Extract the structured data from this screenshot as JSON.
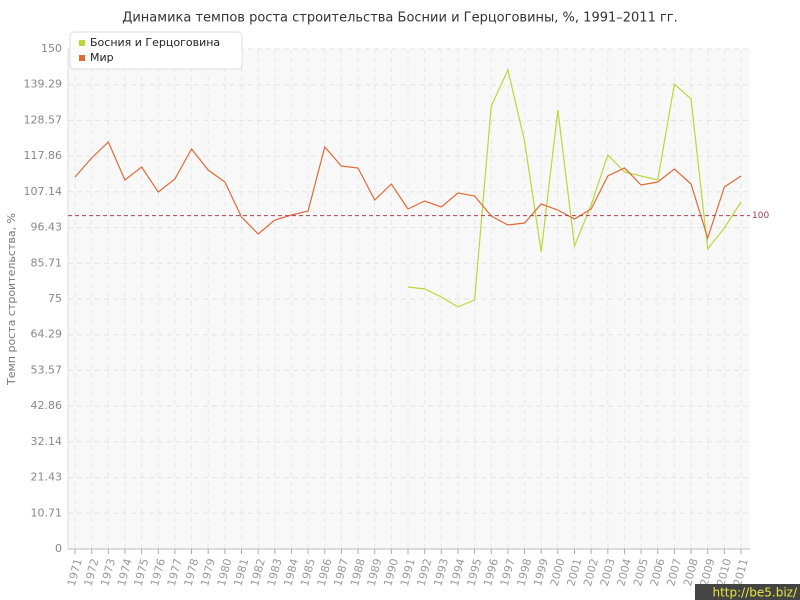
{
  "chart_data": {
    "type": "line",
    "title": "Динамика темпов роста строительства Боснии и Герцоговины, %, 1991–2011 гг.",
    "y_label": "Темп роста строительства, %",
    "categories": [
      "1971",
      "1972",
      "1973",
      "1974",
      "1975",
      "1976",
      "1977",
      "1978",
      "1979",
      "1980",
      "1981",
      "1982",
      "1983",
      "1984",
      "1985",
      "1986",
      "1987",
      "1988",
      "1989",
      "1990",
      "1991",
      "1992",
      "1993",
      "1994",
      "1995",
      "1996",
      "1997",
      "1998",
      "1999",
      "2000",
      "2001",
      "2002",
      "2003",
      "2004",
      "2005",
      "2006",
      "2007",
      "2008",
      "2009",
      "2010",
      "2011"
    ],
    "series": [
      {
        "name": "Босния и Герцоговина",
        "color": "#b9d83a",
        "values": [
          null,
          null,
          null,
          null,
          null,
          null,
          null,
          null,
          null,
          null,
          null,
          null,
          null,
          null,
          null,
          null,
          null,
          null,
          null,
          null,
          78.6,
          78,
          75.6,
          72.6,
          74.7,
          132.9,
          143.7,
          122.4,
          89.1,
          131.7,
          90.9,
          103.2,
          118.2,
          113.1,
          111.9,
          110.7,
          139.5,
          135,
          90,
          96.3,
          104.1
        ]
      },
      {
        "name": "Мир",
        "color": "#e06a3a",
        "values": [
          111.6,
          117.3,
          122.1,
          110.7,
          114.6,
          107.1,
          111,
          120,
          113.7,
          110.1,
          99.6,
          94.5,
          98.7,
          100.2,
          101.4,
          120.6,
          114.9,
          114.3,
          104.7,
          109.5,
          102,
          104.4,
          102.6,
          106.8,
          105.9,
          99.9,
          97.2,
          97.8,
          103.5,
          101.7,
          99,
          102,
          111.9,
          114.3,
          109.2,
          110.1,
          114,
          109.5,
          93.3,
          108.6,
          111.9
        ]
      }
    ],
    "ylim": [
      0,
      150
    ],
    "yticks": [
      0,
      10.71,
      21.43,
      32.14,
      42.86,
      53.57,
      64.29,
      75,
      85.71,
      96.43,
      107.14,
      117.86,
      128.57,
      139.29,
      150
    ],
    "grid": true,
    "legend": "top-left",
    "reference_line": 100,
    "reference_color": "#b04050",
    "watermark": "http://be5.biz/"
  }
}
